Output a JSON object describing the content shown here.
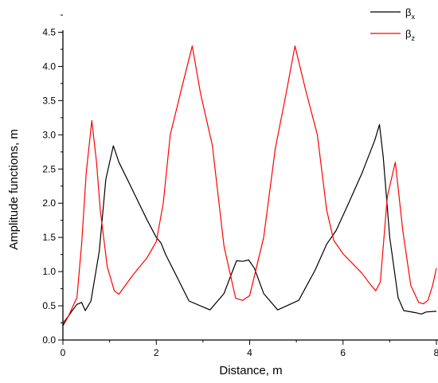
{
  "chart_data": {
    "type": "line",
    "xlabel": "Distance, m",
    "ylabel": "Amplitude functions, m",
    "xlim": [
      0,
      8
    ],
    "ylim": [
      0,
      4.75
    ],
    "x_ticks": [
      0,
      2,
      4,
      6,
      8
    ],
    "x_tick_labels": [
      "0",
      "2",
      "4",
      "6",
      "8"
    ],
    "y_ticks": [
      0.0,
      0.5,
      1.0,
      1.5,
      2.0,
      2.5,
      3.0,
      3.5,
      4.0,
      4.5
    ],
    "y_tick_labels": [
      "0.0",
      "0.5",
      "1.0",
      "1.5",
      "2.0",
      "2.5",
      "3.0",
      "3.5",
      "4.0",
      "4.5"
    ],
    "grid": false,
    "legend_position": "top-right",
    "series": [
      {
        "name": "β",
        "name_subscript": "x",
        "color": "#000000",
        "points": [
          [
            0.0,
            0.21
          ],
          [
            0.1,
            0.33
          ],
          [
            0.2,
            0.43
          ],
          [
            0.3,
            0.52
          ],
          [
            0.4,
            0.55
          ],
          [
            0.48,
            0.43
          ],
          [
            0.6,
            0.57
          ],
          [
            0.78,
            1.3
          ],
          [
            0.92,
            2.35
          ],
          [
            1.08,
            2.84
          ],
          [
            1.2,
            2.6
          ],
          [
            1.4,
            2.32
          ],
          [
            1.6,
            2.04
          ],
          [
            1.8,
            1.76
          ],
          [
            2.0,
            1.5
          ],
          [
            2.1,
            1.42
          ],
          [
            2.2,
            1.25
          ],
          [
            2.4,
            0.98
          ],
          [
            2.7,
            0.57
          ],
          [
            3.15,
            0.44
          ],
          [
            3.45,
            0.68
          ],
          [
            3.6,
            0.95
          ],
          [
            3.72,
            1.16
          ],
          [
            3.85,
            1.15
          ],
          [
            3.98,
            1.17
          ],
          [
            4.1,
            1.05
          ],
          [
            4.3,
            0.68
          ],
          [
            4.6,
            0.44
          ],
          [
            5.05,
            0.58
          ],
          [
            5.4,
            1.02
          ],
          [
            5.65,
            1.4
          ],
          [
            5.85,
            1.6
          ],
          [
            6.1,
            1.97
          ],
          [
            6.4,
            2.43
          ],
          [
            6.68,
            2.92
          ],
          [
            6.78,
            3.15
          ],
          [
            6.86,
            2.68
          ],
          [
            7.0,
            1.5
          ],
          [
            7.18,
            0.62
          ],
          [
            7.3,
            0.43
          ],
          [
            7.55,
            0.4
          ],
          [
            7.68,
            0.38
          ],
          [
            7.78,
            0.41
          ],
          [
            8.0,
            0.42
          ]
        ]
      },
      {
        "name": "β",
        "name_subscript": "z",
        "color": "#ff0000",
        "points": [
          [
            0.0,
            0.25
          ],
          [
            0.12,
            0.35
          ],
          [
            0.3,
            0.62
          ],
          [
            0.4,
            1.4
          ],
          [
            0.5,
            2.45
          ],
          [
            0.62,
            3.21
          ],
          [
            0.72,
            2.6
          ],
          [
            0.8,
            1.9
          ],
          [
            0.95,
            1.07
          ],
          [
            1.1,
            0.72
          ],
          [
            1.2,
            0.67
          ],
          [
            1.5,
            0.95
          ],
          [
            1.8,
            1.2
          ],
          [
            2.0,
            1.44
          ],
          [
            2.15,
            2.0
          ],
          [
            2.3,
            3.0
          ],
          [
            2.55,
            3.7
          ],
          [
            2.77,
            4.3
          ],
          [
            2.95,
            3.6
          ],
          [
            3.2,
            2.85
          ],
          [
            3.45,
            1.37
          ],
          [
            3.7,
            0.61
          ],
          [
            3.85,
            0.58
          ],
          [
            4.0,
            0.65
          ],
          [
            4.3,
            1.5
          ],
          [
            4.55,
            2.8
          ],
          [
            4.78,
            3.6
          ],
          [
            4.97,
            4.3
          ],
          [
            5.2,
            3.65
          ],
          [
            5.45,
            3.0
          ],
          [
            5.65,
            1.9
          ],
          [
            5.8,
            1.46
          ],
          [
            6.0,
            1.26
          ],
          [
            6.4,
            0.98
          ],
          [
            6.6,
            0.8
          ],
          [
            6.7,
            0.72
          ],
          [
            6.8,
            0.85
          ],
          [
            6.95,
            2.1
          ],
          [
            7.12,
            2.6
          ],
          [
            7.28,
            1.6
          ],
          [
            7.45,
            0.8
          ],
          [
            7.62,
            0.55
          ],
          [
            7.72,
            0.53
          ],
          [
            7.82,
            0.58
          ],
          [
            7.92,
            0.8
          ],
          [
            8.0,
            1.05
          ]
        ]
      }
    ]
  }
}
